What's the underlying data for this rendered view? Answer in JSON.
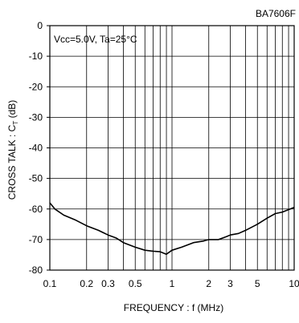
{
  "chart_data": {
    "type": "line",
    "part_number": "BA7606F",
    "condition_label": "Vcc=5.0V, Ta=25°C",
    "xlabel": "FREQUENCY : f (MHz)",
    "ylabel_main": "CROSS TALK : C",
    "ylabel_sub": "T",
    "ylabel_unit": " (dB)",
    "x_scale": "log",
    "xlim": [
      0.1,
      10
    ],
    "ylim": [
      -80,
      0
    ],
    "grid": true,
    "x_tick_labels": [
      {
        "value": 0.1,
        "label": "0.1"
      },
      {
        "value": 0.2,
        "label": "0.2"
      },
      {
        "value": 0.3,
        "label": "0.3"
      },
      {
        "value": 0.5,
        "label": "0.5"
      },
      {
        "value": 1,
        "label": "1"
      },
      {
        "value": 2,
        "label": "2"
      },
      {
        "value": 3,
        "label": "3"
      },
      {
        "value": 5,
        "label": "5"
      },
      {
        "value": 10,
        "label": "10"
      }
    ],
    "y_tick_labels": [
      {
        "value": 0,
        "label": "0"
      },
      {
        "value": -10,
        "label": "-10"
      },
      {
        "value": -20,
        "label": "-20"
      },
      {
        "value": -30,
        "label": "-30"
      },
      {
        "value": -40,
        "label": "-40"
      },
      {
        "value": -50,
        "label": "-50"
      },
      {
        "value": -60,
        "label": "-60"
      },
      {
        "value": -70,
        "label": "-70"
      },
      {
        "value": -80,
        "label": "-80"
      }
    ],
    "x_gridlines": [
      0.2,
      0.3,
      0.4,
      0.5,
      0.6,
      0.7,
      0.8,
      0.9,
      1,
      2,
      3,
      4,
      5,
      6,
      7,
      8,
      9
    ],
    "y_gridlines": [
      -10,
      -20,
      -30,
      -40,
      -50,
      -60,
      -70
    ],
    "series": [
      {
        "x": [
          0.1,
          0.11,
          0.13,
          0.16,
          0.2,
          0.25,
          0.3,
          0.35,
          0.4,
          0.5,
          0.6,
          0.7,
          0.8,
          0.9,
          1.0,
          1.2,
          1.5,
          1.8,
          2.0,
          2.4,
          2.8,
          3.0,
          3.5,
          4.0,
          5.0,
          6.0,
          7.0,
          8.0,
          10.0
        ],
        "y": [
          -58,
          -60,
          -62,
          -63.5,
          -65.5,
          -67,
          -68.5,
          -69.5,
          -71,
          -72.5,
          -73.5,
          -73.8,
          -74,
          -74.8,
          -73.5,
          -72.5,
          -71,
          -70.5,
          -70,
          -70,
          -69,
          -68.5,
          -68,
          -67,
          -65,
          -63,
          -61.5,
          -61,
          -59.5
        ]
      }
    ]
  }
}
